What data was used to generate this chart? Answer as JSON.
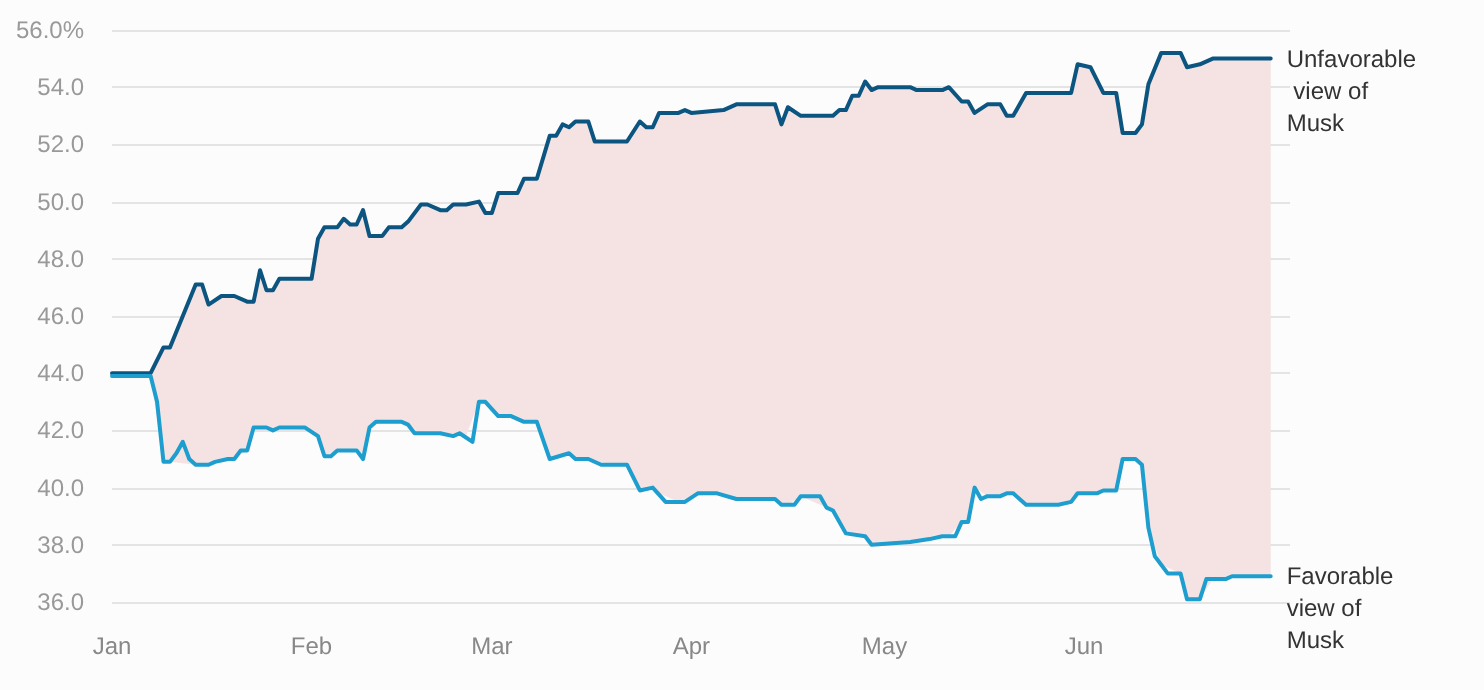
{
  "chart_data": {
    "type": "line",
    "xlim": [
      "--01-01",
      "--07-03"
    ],
    "xticks": [
      {
        "value": "--01-01",
        "label": "Jan"
      },
      {
        "value": "--02-01",
        "label": "Feb"
      },
      {
        "value": "--03-01",
        "label": "Mar"
      },
      {
        "value": "--04-01",
        "label": "Apr"
      },
      {
        "value": "--05-01",
        "label": "May"
      },
      {
        "value": "--06-01",
        "label": "Jun"
      }
    ],
    "ylim": [
      36,
      56
    ],
    "yticks": [
      {
        "value": 36,
        "label": "36.0"
      },
      {
        "value": 38,
        "label": "38.0"
      },
      {
        "value": 40,
        "label": "40.0"
      },
      {
        "value": 42,
        "label": "42.0"
      },
      {
        "value": 44,
        "label": "44.0"
      },
      {
        "value": 46,
        "label": "46.0"
      },
      {
        "value": 48,
        "label": "48.0"
      },
      {
        "value": 50,
        "label": "50.0"
      },
      {
        "value": 52,
        "label": "52.0"
      },
      {
        "value": 54,
        "label": "54.0"
      },
      {
        "value": 56,
        "label": "56.0%"
      }
    ],
    "grid": "y",
    "legend": false,
    "marker": "none",
    "line_style": "solid",
    "series": [
      {
        "name": "Unfavorable view of Musk",
        "color": "#0b5580",
        "x": [
          "--01-01",
          "--01-07",
          "--01-09",
          "--01-10",
          "--01-14",
          "--01-15",
          "--01-16",
          "--01-18",
          "--01-20",
          "--01-22",
          "--01-23",
          "--01-24",
          "--01-25",
          "--01-26",
          "--01-27",
          "--02-01",
          "--02-02",
          "--02-03",
          "--02-05",
          "--02-06",
          "--02-07",
          "--02-08",
          "--02-09",
          "--02-10",
          "--02-12",
          "--02-13",
          "--02-15",
          "--02-16",
          "--02-18",
          "--02-19",
          "--02-21",
          "--02-22",
          "--02-23",
          "--02-25",
          "--02-27",
          "--02-28",
          "--03-01",
          "--03-02",
          "--03-05",
          "--03-06",
          "--03-08",
          "--03-10",
          "--03-11",
          "--03-12",
          "--03-13",
          "--03-14",
          "--03-16",
          "--03-17",
          "--03-22",
          "--03-24",
          "--03-25",
          "--03-26",
          "--03-27",
          "--03-30",
          "--03-31",
          "--04-01",
          "--04-06",
          "--04-08",
          "--04-14",
          "--04-15",
          "--04-16",
          "--04-18",
          "--04-23",
          "--04-24",
          "--04-25",
          "--04-26",
          "--04-27",
          "--04-28",
          "--04-29",
          "--04-30",
          "--05-05",
          "--05-06",
          "--05-10",
          "--05-11",
          "--05-13",
          "--05-14",
          "--05-15",
          "--05-17",
          "--05-19",
          "--05-20",
          "--05-21",
          "--05-23",
          "--05-30",
          "--05-31",
          "--06-02",
          "--06-04",
          "--06-06",
          "--06-07",
          "--06-09",
          "--06-10",
          "--06-11",
          "--06-13",
          "--06-16",
          "--06-17",
          "--06-19",
          "--06-21",
          "--06-30"
        ],
        "values": [
          44.0,
          44.0,
          44.9,
          44.9,
          47.1,
          47.1,
          46.4,
          46.7,
          46.7,
          46.5,
          46.5,
          47.6,
          46.9,
          46.9,
          47.3,
          47.3,
          48.7,
          49.1,
          49.1,
          49.4,
          49.2,
          49.2,
          49.7,
          48.8,
          48.8,
          49.1,
          49.1,
          49.3,
          49.9,
          49.9,
          49.7,
          49.7,
          49.9,
          49.9,
          50.0,
          49.6,
          49.6,
          50.3,
          50.3,
          50.8,
          50.8,
          52.3,
          52.3,
          52.7,
          52.6,
          52.8,
          52.8,
          52.1,
          52.1,
          52.8,
          52.6,
          52.6,
          53.1,
          53.1,
          53.2,
          53.1,
          53.2,
          53.4,
          53.4,
          52.7,
          53.3,
          53.0,
          53.0,
          53.2,
          53.2,
          53.7,
          53.7,
          54.2,
          53.9,
          54.0,
          54.0,
          53.9,
          53.9,
          54.0,
          53.5,
          53.5,
          53.1,
          53.4,
          53.4,
          53.0,
          53.0,
          53.8,
          53.8,
          54.8,
          54.7,
          53.8,
          53.8,
          52.4,
          52.4,
          52.7,
          54.1,
          55.2,
          55.2,
          54.7,
          54.8,
          55.0,
          55.0
        ],
        "upper": [
          44.0,
          44.0,
          44.9,
          44.9,
          47.1,
          47.1,
          46.4,
          46.7,
          46.7,
          46.5,
          46.5,
          47.6,
          46.9,
          46.9,
          47.3,
          47.3,
          48.7,
          49.1,
          49.1,
          49.4,
          49.2,
          49.2,
          49.7,
          48.8,
          48.8,
          49.1,
          49.1,
          49.3,
          49.9,
          49.9,
          49.7,
          49.7,
          49.9,
          49.9,
          50.0,
          49.6,
          49.6,
          50.3,
          50.3,
          50.8,
          50.8,
          52.3,
          52.3,
          52.7,
          52.6,
          52.8,
          52.8,
          52.1,
          52.1,
          52.8,
          52.6,
          52.6,
          53.1,
          53.1,
          53.2,
          53.1,
          53.2,
          53.4,
          53.4,
          52.7,
          53.3,
          53.0,
          53.0,
          53.2,
          53.2,
          53.7,
          53.7,
          54.2,
          53.9,
          54.0,
          54.0,
          53.9,
          53.9,
          54.0,
          53.5,
          53.5,
          53.1,
          53.4,
          53.4,
          53.0,
          53.0,
          53.8,
          53.8,
          54.8,
          54.7,
          53.8,
          53.8,
          52.4,
          52.4,
          52.7,
          54.1,
          55.2,
          55.2,
          54.7,
          54.8,
          55.0,
          55.0
        ],
        "lower": [
          43.9,
          43.9,
          40.9,
          40.9,
          40.8,
          40.8,
          40.8,
          41.0,
          41.0,
          41.3,
          42.1,
          42.1,
          42.1,
          42.0,
          42.1,
          42.0,
          41.8,
          41.1,
          41.3,
          41.3,
          41.3,
          41.3,
          41.0,
          42.1,
          42.3,
          42.3,
          42.3,
          42.2,
          41.9,
          41.9,
          41.9,
          41.9,
          41.8,
          41.8,
          43.0,
          43.0,
          42.8,
          42.5,
          42.4,
          42.3,
          42.3,
          41.0,
          41.1,
          41.1,
          41.2,
          41.0,
          41.0,
          40.9,
          40.8,
          39.9,
          40.0,
          40.0,
          39.8,
          39.5,
          39.5,
          39.7,
          39.8,
          39.6,
          39.6,
          39.4,
          39.4,
          39.7,
          39.2,
          38.8,
          38.4,
          38.4,
          38.3,
          38.3,
          38.0,
          38.0,
          38.1,
          38.1,
          38.3,
          38.3,
          38.8,
          38.8,
          40.0,
          39.7,
          39.7,
          39.8,
          39.8,
          39.4,
          39.5,
          39.8,
          39.8,
          39.9,
          39.9,
          41.0,
          41.0,
          40.8,
          38.6,
          37.3,
          37.0,
          36.1,
          36.1,
          36.8,
          36.9
        ]
      },
      {
        "name": "Favorable view of Musk",
        "color": "#1e9dcf",
        "x": [
          "--01-01",
          "--01-07",
          "--01-08",
          "--01-09",
          "--01-10",
          "--01-11",
          "--01-12",
          "--01-13",
          "--01-14",
          "--01-16",
          "--01-17",
          "--01-19",
          "--01-20",
          "--01-21",
          "--01-22",
          "--01-23",
          "--01-25",
          "--01-26",
          "--01-27",
          "--01-31",
          "--02-02",
          "--02-03",
          "--02-04",
          "--02-05",
          "--02-08",
          "--02-09",
          "--02-10",
          "--02-11",
          "--02-15",
          "--02-16",
          "--02-17",
          "--02-21",
          "--02-23",
          "--02-24",
          "--02-26",
          "--02-27",
          "--02-28",
          "--03-02",
          "--03-04",
          "--03-06",
          "--03-08",
          "--03-10",
          "--03-13",
          "--03-14",
          "--03-16",
          "--03-18",
          "--03-22",
          "--03-24",
          "--03-26",
          "--03-28",
          "--03-31",
          "--04-02",
          "--04-05",
          "--04-08",
          "--04-14",
          "--04-15",
          "--04-17",
          "--04-18",
          "--04-21",
          "--04-22",
          "--04-23",
          "--04-25",
          "--04-28",
          "--04-29",
          "--05-05",
          "--05-08",
          "--05-10",
          "--05-12",
          "--05-13",
          "--05-14",
          "--05-15",
          "--05-16",
          "--05-17",
          "--05-19",
          "--05-20",
          "--05-21",
          "--05-23",
          "--05-28",
          "--05-30",
          "--05-31",
          "--06-03",
          "--06-04",
          "--06-06",
          "--06-07",
          "--06-09",
          "--06-10",
          "--06-11",
          "--06-12",
          "--06-14",
          "--06-16",
          "--06-17",
          "--06-19",
          "--06-20",
          "--06-23",
          "--06-24",
          "--06-30"
        ],
        "values": [
          43.9,
          43.9,
          43.0,
          40.9,
          40.9,
          41.2,
          41.6,
          41.0,
          40.8,
          40.8,
          40.9,
          41.0,
          41.0,
          41.3,
          41.3,
          42.1,
          42.1,
          42.0,
          42.1,
          42.1,
          41.8,
          41.1,
          41.1,
          41.3,
          41.3,
          41.0,
          42.1,
          42.3,
          42.3,
          42.2,
          41.9,
          41.9,
          41.8,
          41.9,
          41.6,
          43.0,
          43.0,
          42.5,
          42.5,
          42.3,
          42.3,
          41.0,
          41.2,
          41.0,
          41.0,
          40.8,
          40.8,
          39.9,
          40.0,
          39.5,
          39.5,
          39.8,
          39.8,
          39.6,
          39.6,
          39.4,
          39.4,
          39.7,
          39.7,
          39.3,
          39.2,
          38.4,
          38.3,
          38.0,
          38.1,
          38.2,
          38.3,
          38.3,
          38.8,
          38.8,
          40.0,
          39.6,
          39.7,
          39.7,
          39.8,
          39.8,
          39.4,
          39.4,
          39.5,
          39.8,
          39.8,
          39.9,
          39.9,
          41.0,
          41.0,
          40.8,
          38.6,
          37.6,
          37.0,
          37.0,
          36.1,
          36.1,
          36.8,
          36.8,
          36.9,
          36.9
        ]
      }
    ]
  }
}
